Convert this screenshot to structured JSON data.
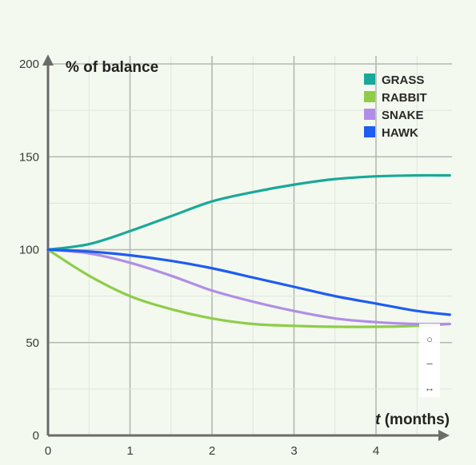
{
  "chart_data": {
    "type": "line",
    "ylabel": "% of balance",
    "xlabel_var": "t",
    "xlabel_unit": " (months)",
    "xlim": [
      0,
      4.9
    ],
    "ylim": [
      0,
      200
    ],
    "x_ticks": [
      0,
      1,
      2,
      3,
      4
    ],
    "y_ticks": [
      0,
      50,
      100,
      150,
      200
    ],
    "grid": true,
    "legend_position": "top-right",
    "series": [
      {
        "name": "GRASS",
        "color": "#1aa89a",
        "x": [
          0,
          0.5,
          1,
          1.5,
          2,
          2.5,
          3,
          3.5,
          4,
          4.5,
          4.9
        ],
        "y": [
          100,
          103,
          110,
          118,
          126,
          131,
          135,
          138,
          139.5,
          140,
          140
        ]
      },
      {
        "name": "RABBIT",
        "color": "#8fcc4a",
        "x": [
          0,
          0.5,
          1,
          1.5,
          2,
          2.5,
          3,
          3.5,
          4,
          4.5,
          4.9
        ],
        "y": [
          100,
          86,
          75,
          68,
          63,
          60,
          59,
          58.5,
          58.5,
          59,
          60
        ]
      },
      {
        "name": "SNAKE",
        "color": "#b08ee6",
        "x": [
          0,
          0.5,
          1,
          1.5,
          2,
          2.5,
          3,
          3.5,
          4,
          4.5,
          4.9
        ],
        "y": [
          100,
          98,
          93,
          86,
          78,
          72,
          67,
          63,
          61,
          60,
          60
        ]
      },
      {
        "name": "HAWK",
        "color": "#1f5cf0",
        "x": [
          0,
          0.5,
          1,
          1.5,
          2,
          2.5,
          3,
          3.5,
          4,
          4.5,
          4.9
        ],
        "y": [
          100,
          99,
          97,
          94,
          90,
          85,
          80,
          75,
          71,
          67,
          65
        ]
      }
    ]
  },
  "controls": {
    "reset_glyph": "○",
    "minus_glyph": "–",
    "fit_glyph": "↔",
    "color": "#8a8a8a"
  }
}
